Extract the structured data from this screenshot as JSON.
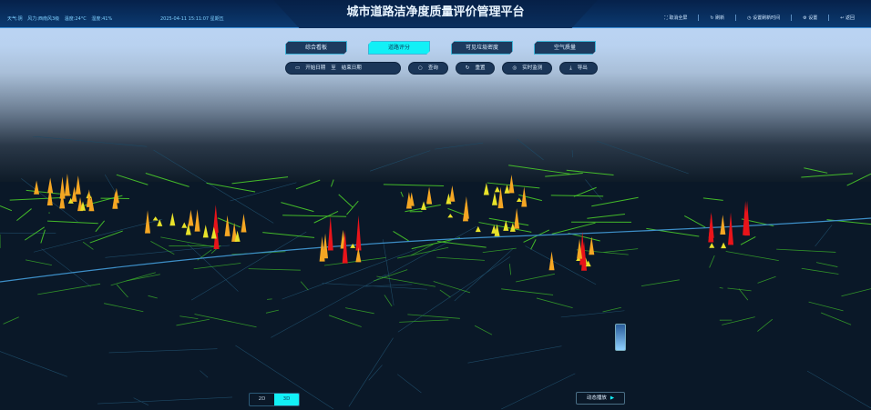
{
  "header": {
    "title": "城市道路洁净度质量评价管理平台",
    "weather": [
      "天气:阴",
      "风力:西南风3级",
      "温度:24°C",
      "湿度:41%"
    ],
    "datetime": "2025-04-11 15:11:07 星期五",
    "actions": [
      {
        "icon": "fullscreen-exit-icon",
        "label": "取消全屏"
      },
      {
        "icon": "refresh-icon",
        "label": "刷新"
      },
      {
        "icon": "clock-icon",
        "label": "设置刷新时间"
      },
      {
        "icon": "gear-icon",
        "label": "设置"
      },
      {
        "icon": "back-icon",
        "label": "返回"
      }
    ]
  },
  "tabs": [
    {
      "label": "综合看板",
      "active": false
    },
    {
      "label": "道路评分",
      "active": true
    },
    {
      "label": "可见垃圾密度",
      "active": false
    },
    {
      "label": "空气质量",
      "active": false
    }
  ],
  "toolbar": {
    "start_placeholder": "开始日期",
    "to": "至",
    "end_placeholder": "结束日期",
    "query": "查询",
    "reset": "重置",
    "realtime": "实时监测",
    "export": "导出"
  },
  "view_toggle": {
    "options": [
      "2D",
      "3D"
    ],
    "selected": "3D"
  },
  "play_label": "动态播放",
  "colors": {
    "accent": "#12f0f6",
    "road": "#4dd62a",
    "bar_high": "#e8141a",
    "bar_mid": "#f5a623",
    "bar_low": "#e8e22a"
  }
}
